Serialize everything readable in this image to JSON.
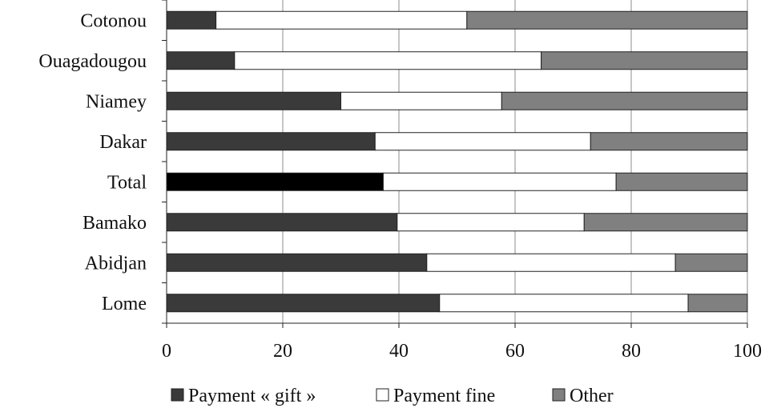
{
  "chart_data": {
    "type": "bar",
    "orientation": "horizontal",
    "stacked": true,
    "categories": [
      "Cotonou",
      "Ouagadougou",
      "Niamey",
      "Dakar",
      "Total",
      "Bamako",
      "Abidjan",
      "Lome"
    ],
    "series": [
      {
        "name": "Payment « gift »",
        "values": [
          8.5,
          11.7,
          30.0,
          35.9,
          37.3,
          39.7,
          44.8,
          47.0
        ]
      },
      {
        "name": "Payment fine",
        "values": [
          43.2,
          52.8,
          27.7,
          37.1,
          40.1,
          32.2,
          42.8,
          42.8
        ]
      },
      {
        "name": "Other",
        "values": [
          48.3,
          35.5,
          42.3,
          27.0,
          22.6,
          28.1,
          12.4,
          10.2
        ]
      }
    ],
    "highlight": {
      "category": "Total",
      "series": "Payment « gift »",
      "color": "#000000"
    },
    "colors": [
      "#3a3a3a",
      "#ffffff",
      "#808080"
    ],
    "xlim": [
      0,
      100
    ],
    "xticks": [
      "0",
      "20",
      "40",
      "60",
      "80",
      "100"
    ],
    "grid": "vertical",
    "legend": "bottom-center"
  }
}
